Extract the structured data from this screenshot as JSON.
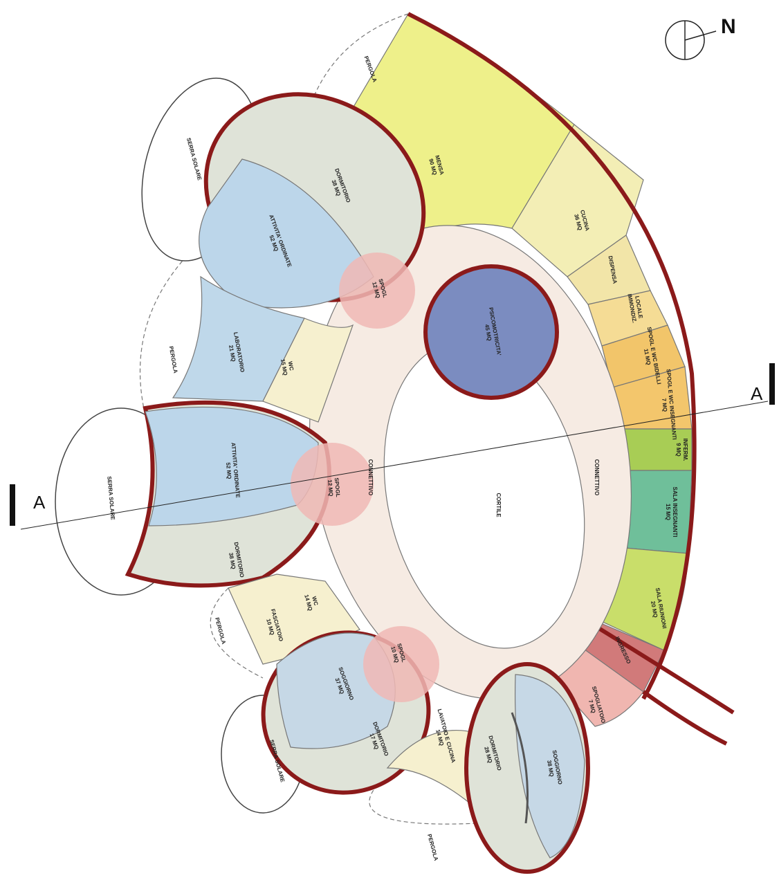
{
  "rooms": [
    {
      "label": "PERGOLA"
    },
    {
      "label": "SERRA SOLARE"
    },
    {
      "label": "DORMITORIO",
      "area": "38 MQ"
    },
    {
      "label": "ATTIVITA' ORDINATE",
      "area": "52 MQ"
    },
    {
      "label": "MENSA",
      "area": "90 MQ"
    },
    {
      "label": "CUCINA",
      "area": "36 MQ"
    },
    {
      "label": "DISPENSA"
    },
    {
      "label": "LOCALE",
      "area": "IMMONDIZ."
    },
    {
      "label": "SPOGL E WC BIDELLI",
      "area": "11 MQ"
    },
    {
      "label": "SPOGL E WC INSEGNANTI",
      "area": "7 MQ"
    },
    {
      "label": "INFERM.",
      "area": "9 MQ"
    },
    {
      "label": "SALA INSEGNANTI",
      "area": "15 MQ"
    },
    {
      "label": "SALA RIUNIONI",
      "area": "20 MQ"
    },
    {
      "label": "INGRESSO"
    },
    {
      "label": "SPOGLIATOIO",
      "area": "7 MQ"
    },
    {
      "label": "SOGGIORNO",
      "area": "38 MQ"
    },
    {
      "label": "DORMITORIO",
      "area": "28 MQ"
    },
    {
      "label": "LAVATOIO E CUCINA",
      "area": "14 MQ"
    },
    {
      "label": "PERGOLA"
    },
    {
      "label": "DORMITORIO",
      "area": "17 MQ"
    },
    {
      "label": "SOGGIORNO",
      "area": "37 MQ"
    },
    {
      "label": "SERRA SOLARE"
    },
    {
      "label": "SPOGL",
      "area": "10 MQ"
    },
    {
      "label": "FASCIATOIO",
      "area": "10 MQ"
    },
    {
      "label": "WC",
      "area": "14 MQ"
    },
    {
      "label": "PERGOLA"
    },
    {
      "label": "DORMITORIO",
      "area": "38 MQ"
    },
    {
      "label": "SERRA SOLARE"
    },
    {
      "label": "ATTIVITA' ORDINATE",
      "area": "52 MQ"
    },
    {
      "label": "SPOGL",
      "area": "12 MQ"
    },
    {
      "label": "CONNETTIVO"
    },
    {
      "label": "CORTILE"
    },
    {
      "label": "CONNETTIVO"
    },
    {
      "label": "PSICOMOTRICITA'",
      "area": "45 MQ"
    },
    {
      "label": "LABORATORIO",
      "area": "21 MQ"
    },
    {
      "label": "WC",
      "area": "15 MQ"
    },
    {
      "label": "PERGOLA"
    },
    {
      "label": "SPOGL",
      "area": "12 MQ"
    }
  ],
  "section_marks": [
    "A",
    "A"
  ],
  "compass": "N"
}
